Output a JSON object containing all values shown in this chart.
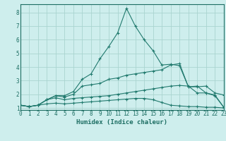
{
  "xlabel": "Humidex (Indice chaleur)",
  "x": [
    0,
    1,
    2,
    3,
    4,
    5,
    6,
    7,
    8,
    9,
    10,
    11,
    12,
    13,
    14,
    15,
    16,
    17,
    18,
    19,
    20,
    21,
    22,
    23
  ],
  "lines": [
    {
      "y": [
        1.2,
        1.1,
        1.2,
        1.3,
        1.35,
        1.3,
        1.35,
        1.4,
        1.45,
        1.5,
        1.55,
        1.6,
        1.65,
        1.7,
        1.7,
        1.6,
        1.4,
        1.2,
        1.15,
        1.1,
        1.1,
        1.05,
        1.05,
        1.0
      ],
      "color": "#217a6e"
    },
    {
      "y": [
        1.2,
        1.1,
        1.2,
        1.6,
        1.75,
        1.6,
        1.7,
        1.75,
        1.8,
        1.85,
        1.9,
        2.0,
        2.1,
        2.2,
        2.3,
        2.4,
        2.5,
        2.6,
        2.65,
        2.6,
        2.1,
        2.1,
        1.9,
        1.05
      ],
      "color": "#217a6e"
    },
    {
      "y": [
        1.2,
        1.1,
        1.2,
        1.6,
        1.9,
        1.8,
        2.0,
        2.6,
        2.7,
        2.8,
        3.1,
        3.2,
        3.4,
        3.5,
        3.6,
        3.7,
        3.8,
        4.15,
        4.25,
        2.55,
        2.55,
        2.6,
        2.1,
        1.95
      ],
      "color": "#217a6e"
    },
    {
      "y": [
        1.2,
        1.1,
        1.2,
        1.6,
        1.9,
        1.9,
        2.2,
        3.1,
        3.5,
        4.6,
        5.5,
        6.5,
        8.3,
        7.0,
        6.0,
        5.2,
        4.15,
        4.2,
        4.1,
        2.55,
        2.6,
        2.1,
        1.95,
        1.05
      ],
      "color": "#217a6e"
    }
  ],
  "bg_color": "#ceeeed",
  "grid_color": "#aad4d0",
  "line_color": "#1d6e63",
  "xlim": [
    0,
    23
  ],
  "ylim": [
    0.85,
    8.6
  ],
  "yticks": [
    1,
    2,
    3,
    4,
    5,
    6,
    7,
    8
  ],
  "xticks": [
    0,
    1,
    2,
    3,
    4,
    5,
    6,
    7,
    8,
    9,
    10,
    11,
    12,
    13,
    14,
    15,
    16,
    17,
    18,
    19,
    20,
    21,
    22,
    23
  ],
  "tick_fontsize": 5.5,
  "xlabel_fontsize": 6.5
}
